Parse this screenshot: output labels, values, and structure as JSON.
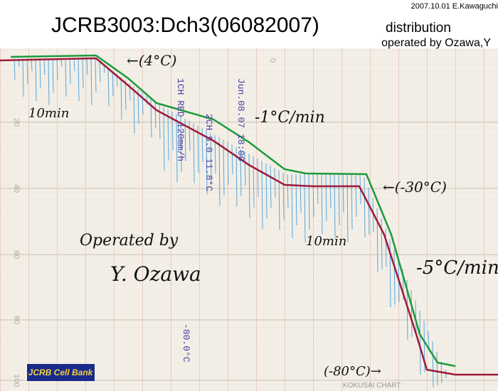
{
  "header": {
    "credit": "2007.10.01 E.Kawaguchi",
    "title": "JCRB3003:Dch3(06082007)",
    "subtitle": "distribution",
    "operator": "operated by Ozawa,Y"
  },
  "annotations": [
    "←(4°C)",
    "10min",
    "-1°C/min",
    "←(-30°C)",
    "10min",
    "-5°C/min",
    "(-80°C)→",
    "Operated by",
    "Y. Ozawa"
  ],
  "recorder_text": [
    "Jun.08.07 18:00",
    "1CH RED 120mm/h",
    "2CH 5.0 11.8°C",
    "-80.0°C"
  ],
  "scale_labels": [
    "0",
    "20",
    "40",
    "60",
    "80",
    "100"
  ],
  "logo": "JCRB Cell Bank",
  "paper_brand": "KOKUSAI CHART"
}
